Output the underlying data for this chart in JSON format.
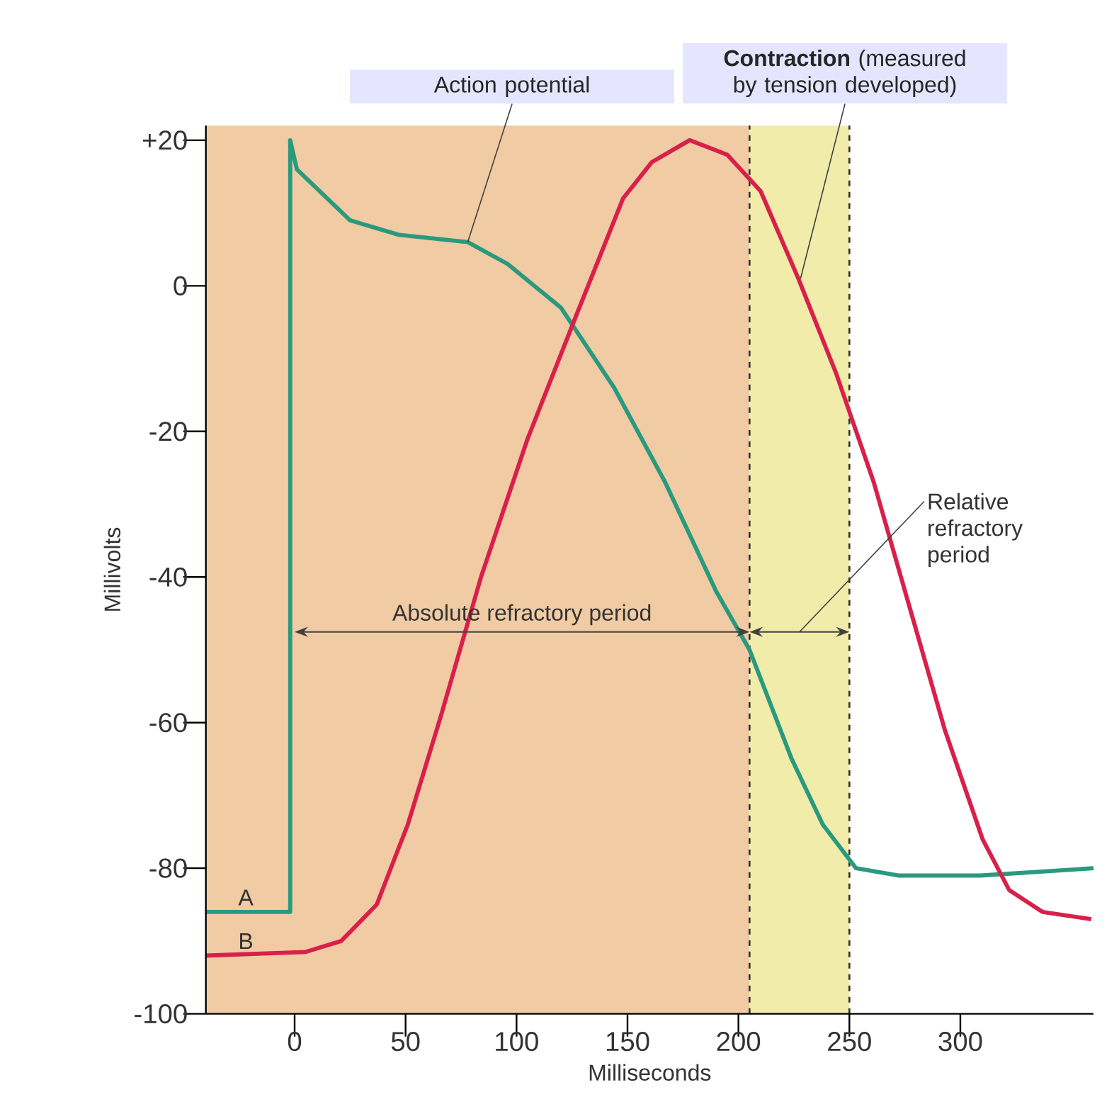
{
  "chart_data": {
    "type": "line",
    "xlabel": "Milliseconds",
    "ylabel": "Millivolts",
    "xlim": [
      -40,
      360
    ],
    "ylim": [
      -100,
      22
    ],
    "xticks": [
      0,
      50,
      100,
      150,
      200,
      250,
      300
    ],
    "yticks": [
      {
        "value": 20,
        "label": "+20"
      },
      0,
      -20,
      -40,
      -60,
      -80,
      -100
    ],
    "marker": "none",
    "line_style": "solid",
    "series": [
      {
        "name": "A",
        "color": "#2a9a7e",
        "x": [
          -40,
          -2,
          -2,
          1,
          25,
          47,
          78,
          96,
          120,
          144,
          167,
          190,
          205,
          224,
          238,
          253,
          272,
          309,
          360
        ],
        "values": [
          -86,
          -86,
          20,
          16,
          9,
          7,
          6,
          3,
          -3,
          -14,
          -27,
          -42,
          -50,
          -65,
          -74,
          -80,
          -81,
          -81,
          -80
        ]
      },
      {
        "name": "B",
        "color": "#d8204a",
        "x": [
          -40,
          5,
          21,
          37,
          51,
          66,
          84,
          105,
          127,
          148,
          161,
          178,
          195,
          210,
          227,
          244,
          261,
          277,
          293,
          310,
          322,
          337,
          359
        ],
        "values": [
          -92,
          -91.5,
          -90,
          -85,
          -74,
          -59,
          -40,
          -21,
          -4,
          12,
          17,
          20,
          18,
          13,
          1,
          -12,
          -27,
          -44,
          -61,
          -76,
          -83,
          -86,
          -87
        ]
      }
    ],
    "bands": [
      {
        "axis": "x",
        "from": -40,
        "to": 0,
        "color": "#f0cba4"
      },
      {
        "axis": "x",
        "from": 0,
        "to": 205,
        "label": "Absolute refractory period",
        "color": "#f0cba4"
      },
      {
        "axis": "x",
        "from": 205,
        "to": 250,
        "label": "Relative refractory period",
        "color": "#f1ecaa"
      }
    ],
    "ref_lines": [
      {
        "axis": "x",
        "value": 205,
        "line_style": "dashed"
      },
      {
        "axis": "x",
        "value": 250,
        "line_style": "dashed"
      }
    ],
    "annotations": [
      {
        "text": "Action potential",
        "x": 78,
        "y": 6
      },
      {
        "text": "**Contraction** (measured by tension developed)",
        "x": 228,
        "y": 1
      }
    ]
  }
}
